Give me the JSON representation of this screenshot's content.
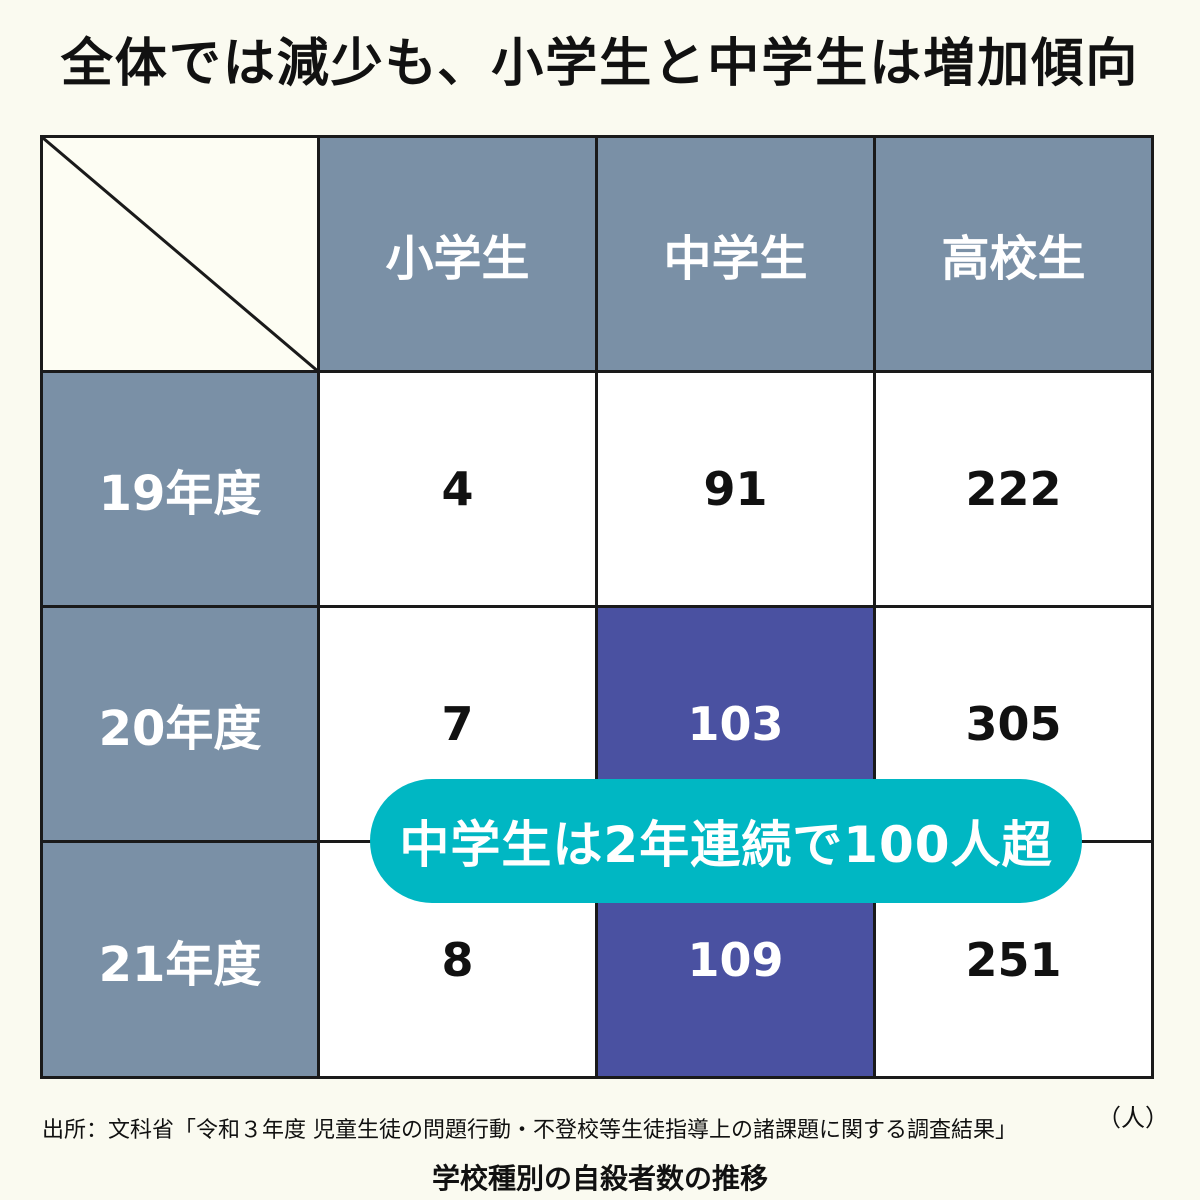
{
  "title": "全体では減少も、小学生と中学生は増加傾向",
  "chart_data": {
    "type": "table",
    "columns": [
      "小学生",
      "中学生",
      "高校生"
    ],
    "rows": [
      {
        "label": "19年度",
        "values": [
          "4",
          "91",
          "222"
        ]
      },
      {
        "label": "20年度",
        "values": [
          "7",
          "103",
          "305"
        ]
      },
      {
        "label": "21年度",
        "values": [
          "8",
          "109",
          "251"
        ]
      }
    ],
    "highlighted_cells": [
      [
        1,
        1
      ],
      [
        2,
        1
      ]
    ],
    "unit": "（人）",
    "caption": "学校種別の自殺者数の推移"
  },
  "callout": "中学生は2年連続で100人超",
  "source": "出所：文科省「令和３年度 児童生徒の問題行動・不登校等生徒指導上の諸課題に関する調査結果」",
  "colors": {
    "header": "#7a90a6",
    "highlight": "#4a51a1",
    "callout": "#00b7c3",
    "background": "#fafaf0"
  }
}
